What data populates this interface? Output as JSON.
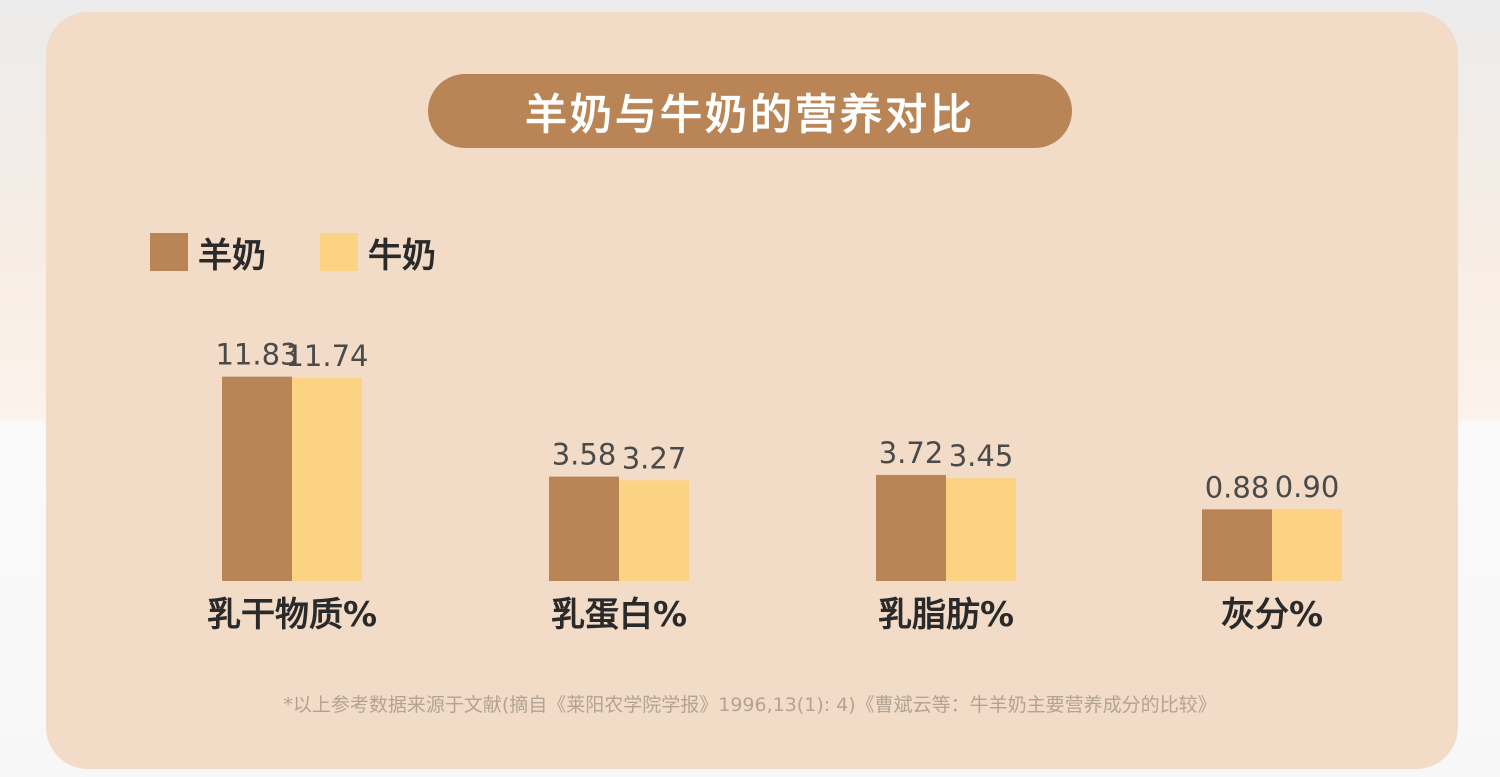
{
  "title": "羊奶与牛奶的营养对比",
  "legend": [
    {
      "label": "羊奶",
      "color": "#b98456"
    },
    {
      "label": "牛奶",
      "color": "#fbd383"
    }
  ],
  "chart_data": {
    "type": "bar",
    "categories": [
      "乳干物质%",
      "乳蛋白%",
      "乳脂肪%",
      "灰分%"
    ],
    "series": [
      {
        "name": "羊奶",
        "values": [
          11.83,
          3.58,
          3.72,
          0.88
        ],
        "labels": [
          "11.83",
          "3.58",
          "3.72",
          "0.88"
        ],
        "color": "#b98456"
      },
      {
        "name": "牛奶",
        "values": [
          11.74,
          3.27,
          3.45,
          0.9
        ],
        "labels": [
          "11.74",
          "3.27",
          "3.45",
          "0.90"
        ],
        "color": "#fbd383"
      }
    ],
    "title": "羊奶与牛奶的营养对比",
    "xlabel": "",
    "ylabel": "",
    "grid": false,
    "legend_position": "top-left"
  },
  "footnote": "*以上参考数据来源于文献(摘自《莱阳农学院学报》1996,13(1): 4)《曹斌云等：牛羊奶主要营养成分的比较》"
}
